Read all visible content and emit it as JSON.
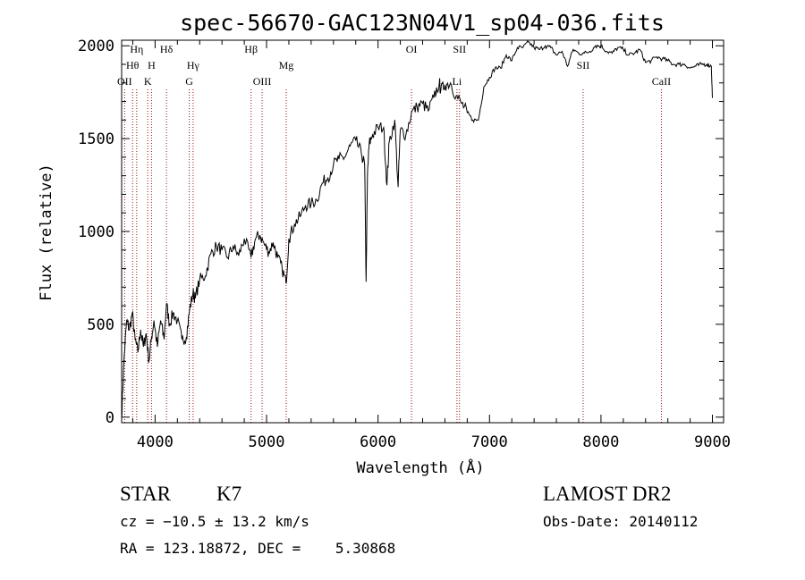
{
  "chart_data": {
    "type": "line",
    "title": "spec-56670-GAC123N04V1_sp04-036.fits",
    "xlabel": "Wavelength (Å)",
    "ylabel": "Flux (relative)",
    "xlim": [
      3700,
      9100
    ],
    "ylim": [
      -30,
      2030
    ],
    "x_ticks": [
      "4000",
      "5000",
      "6000",
      "7000",
      "8000",
      "9000"
    ],
    "y_ticks": [
      "0",
      "500",
      "1000",
      "1500",
      "2000"
    ],
    "x_tick_values": [
      4000,
      5000,
      6000,
      7000,
      8000,
      9000
    ],
    "y_tick_values": [
      0,
      500,
      1000,
      1500,
      2000
    ],
    "grid": false,
    "series": [
      {
        "x": [
          3700,
          3720,
          3745,
          3770,
          3795,
          3820,
          3845,
          3870,
          3895,
          3920,
          3945,
          3968,
          3990,
          4020,
          4050,
          4080,
          4102,
          4130,
          4160,
          4200,
          4240,
          4280,
          4310,
          4340,
          4360,
          4400,
          4450,
          4500,
          4550,
          4600,
          4650,
          4700,
          4750,
          4800,
          4861,
          4900,
          4940,
          4980,
          5020,
          5060,
          5100,
          5140,
          5175,
          5200,
          5250,
          5300,
          5350,
          5400,
          5450,
          5500,
          5550,
          5600,
          5650,
          5700,
          5750,
          5800,
          5850,
          5880,
          5893,
          5905,
          5920,
          5950,
          6000,
          6050,
          6080,
          6100,
          6150,
          6180,
          6200,
          6250,
          6300,
          6350,
          6400,
          6450,
          6500,
          6550,
          6563,
          6600,
          6650,
          6700,
          6750,
          6800,
          6850,
          6900,
          6950,
          7000,
          7050,
          7100,
          7150,
          7200,
          7250,
          7300,
          7350,
          7400,
          7450,
          7500,
          7550,
          7600,
          7650,
          7700,
          7750,
          7800,
          7850,
          7900,
          7950,
          8000,
          8050,
          8100,
          8150,
          8200,
          8250,
          8300,
          8350,
          8400,
          8450,
          8500,
          8550,
          8600,
          8650,
          8700,
          8750,
          8800,
          8850,
          8900,
          8950,
          8990,
          9000
        ],
        "y": [
          0,
          300,
          520,
          470,
          560,
          420,
          350,
          470,
          380,
          450,
          300,
          430,
          520,
          380,
          520,
          420,
          610,
          500,
          560,
          520,
          420,
          430,
          580,
          670,
          640,
          740,
          760,
          880,
          920,
          900,
          860,
          920,
          870,
          960,
          860,
          960,
          980,
          930,
          890,
          940,
          860,
          800,
          720,
          960,
          1040,
          1080,
          1140,
          1150,
          1170,
          1260,
          1290,
          1360,
          1390,
          1400,
          1460,
          1490,
          1420,
          1360,
          730,
          1300,
          1470,
          1520,
          1560,
          1560,
          1250,
          1480,
          1600,
          1240,
          1550,
          1520,
          1640,
          1670,
          1690,
          1650,
          1720,
          1800,
          1760,
          1790,
          1800,
          1730,
          1690,
          1640,
          1600,
          1600,
          1780,
          1830,
          1880,
          1880,
          1950,
          1920,
          1990,
          1990,
          2020,
          1990,
          1980,
          2000,
          1990,
          1950,
          1970,
          1890,
          1980,
          1960,
          1960,
          1970,
          2000,
          2000,
          1970,
          1960,
          1990,
          1980,
          1950,
          1960,
          1980,
          1910,
          1920,
          1940,
          1930,
          1920,
          1900,
          1900,
          1900,
          1880,
          1890,
          1900,
          1900,
          1890,
          1720
        ]
      }
    ],
    "lines": [
      {
        "wave": 3727,
        "row1": "",
        "row2": "",
        "row3": "OII"
      },
      {
        "wave": 3798,
        "row1": "",
        "row2": "Hθ",
        "row3": ""
      },
      {
        "wave": 3835,
        "row1": "Hη",
        "row2": "",
        "row3": ""
      },
      {
        "wave": 3934,
        "row1": "",
        "row2": "",
        "row3": "K"
      },
      {
        "wave": 3968,
        "row1": "",
        "row2": "H",
        "row3": ""
      },
      {
        "wave": 4102,
        "row1": "Hδ",
        "row2": "",
        "row3": ""
      },
      {
        "wave": 4306,
        "row1": "",
        "row2": "",
        "row3": "G"
      },
      {
        "wave": 4341,
        "row1": "",
        "row2": "Hγ",
        "row3": ""
      },
      {
        "wave": 4861,
        "row1": "Hβ",
        "row2": "",
        "row3": ""
      },
      {
        "wave": 4960,
        "row1": "",
        "row2": "",
        "row3": "OIII"
      },
      {
        "wave": 5176,
        "row1": "",
        "row2": "Mg",
        "row3": ""
      },
      {
        "wave": 6300,
        "row1": "OI",
        "row2": "",
        "row3": ""
      },
      {
        "wave": 6708,
        "row1": "",
        "row2": "",
        "row3": "Li"
      },
      {
        "wave": 6731,
        "row1": "SII",
        "row2": "",
        "row3": ""
      },
      {
        "wave": 7840,
        "row1": "",
        "row2": "SII",
        "row3": ""
      },
      {
        "wave": 8542,
        "row1": "",
        "row2": "",
        "row3": "CaII"
      }
    ]
  },
  "info": {
    "class_label": "STAR",
    "subclass": "K7",
    "redshift": "cz = −10.5 ± 13.2 km/s",
    "coords": "RA = 123.18872, DEC =    5.30868",
    "survey": "LAMOST DR2",
    "obs_date": "Obs-Date: 20140112"
  }
}
